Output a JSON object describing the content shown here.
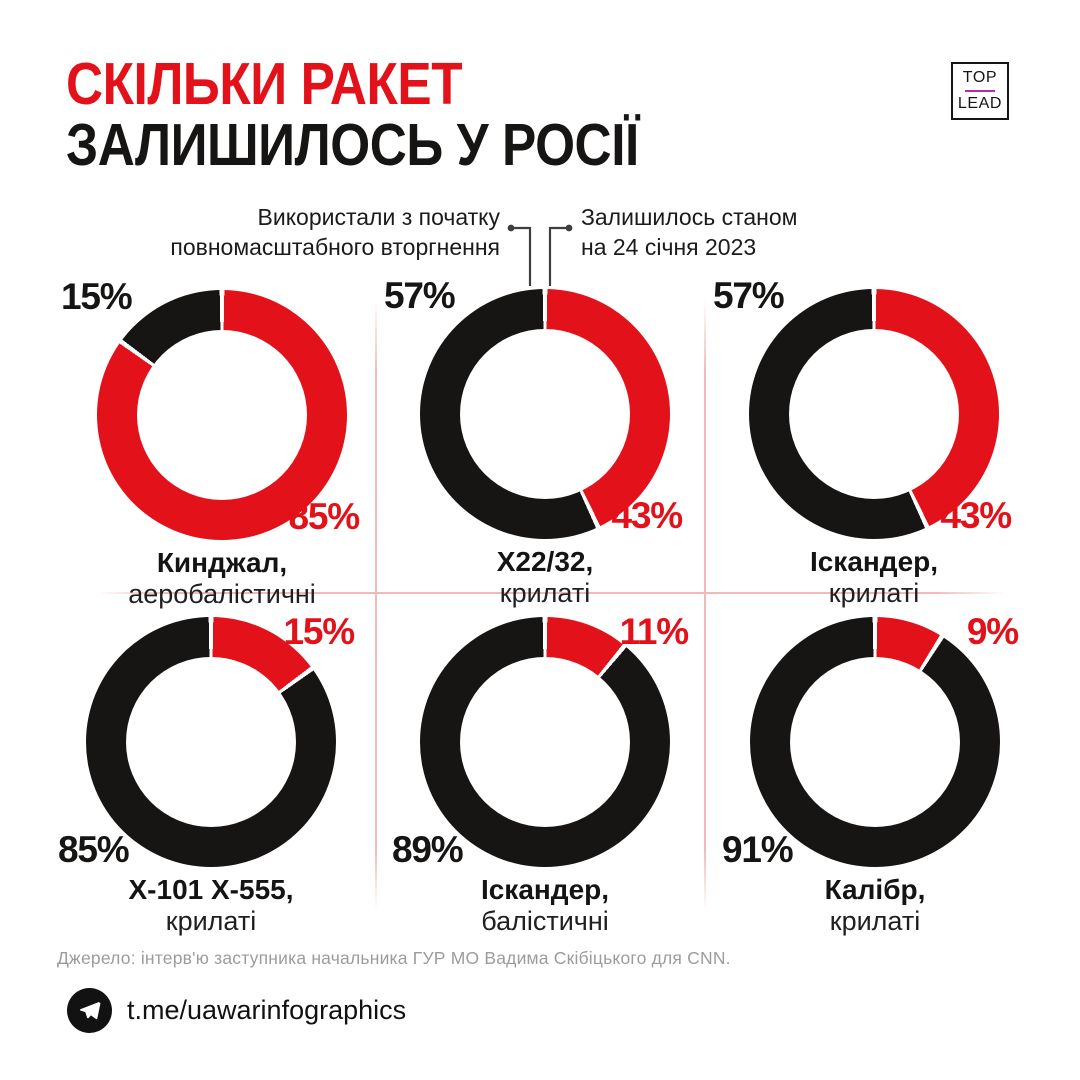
{
  "title": {
    "line1": "СКІЛЬКИ РАКЕТ",
    "line2": "ЗАЛИШИЛОСЬ У РОСІЇ"
  },
  "logo": {
    "top": "TOP",
    "bottom": "LEAD"
  },
  "legend": {
    "used_label": [
      "Використали з початку",
      "повномасштабного вторгнення"
    ],
    "remaining_label": [
      "Залишилось станом",
      "на 24 січня 2023"
    ]
  },
  "colors": {
    "red": "#e31119",
    "black": "#161514",
    "grid_pink": "#f3b9b9",
    "leader_gray": "#3f3f3f",
    "source_gray": "#9c9c9c",
    "logo_purple": "#b42bb4"
  },
  "chart_data": {
    "type": "pie",
    "variant": "donut-grid",
    "unit": "%",
    "title": "СКІЛЬКИ РАКЕТ ЗАЛИШИЛОСЬ У РОСІЇ",
    "legend_entries": [
      {
        "series": "used",
        "color": "#161514",
        "label": "Використали з початку повномасштабного вторгнення"
      },
      {
        "series": "remaining",
        "color": "#e31119",
        "label": "Залишилось станом на 24 січня 2023"
      }
    ],
    "charts": [
      {
        "name": "Кинджал,",
        "mtype": "аеробалістичні",
        "used_pct": 15,
        "remaining_pct": 85
      },
      {
        "name": "Х22/32,",
        "mtype": "крилаті",
        "used_pct": 57,
        "remaining_pct": 43
      },
      {
        "name": "Іскандер,",
        "mtype": "крилаті",
        "used_pct": 57,
        "remaining_pct": 43
      },
      {
        "name": "Х-101 Х-555,",
        "mtype": "крилаті",
        "used_pct": 85,
        "remaining_pct": 15
      },
      {
        "name": "Іскандер,",
        "mtype": "балістичні",
        "used_pct": 89,
        "remaining_pct": 11
      },
      {
        "name": "Калібр,",
        "mtype": "крилаті",
        "used_pct": 91,
        "remaining_pct": 9
      }
    ]
  },
  "source": "Джерело: інтерв'ю заступника начальника ГУР МО Вадима Скібіцького для CNN.",
  "footer": {
    "telegram": "t.me/uawarinfographics"
  }
}
